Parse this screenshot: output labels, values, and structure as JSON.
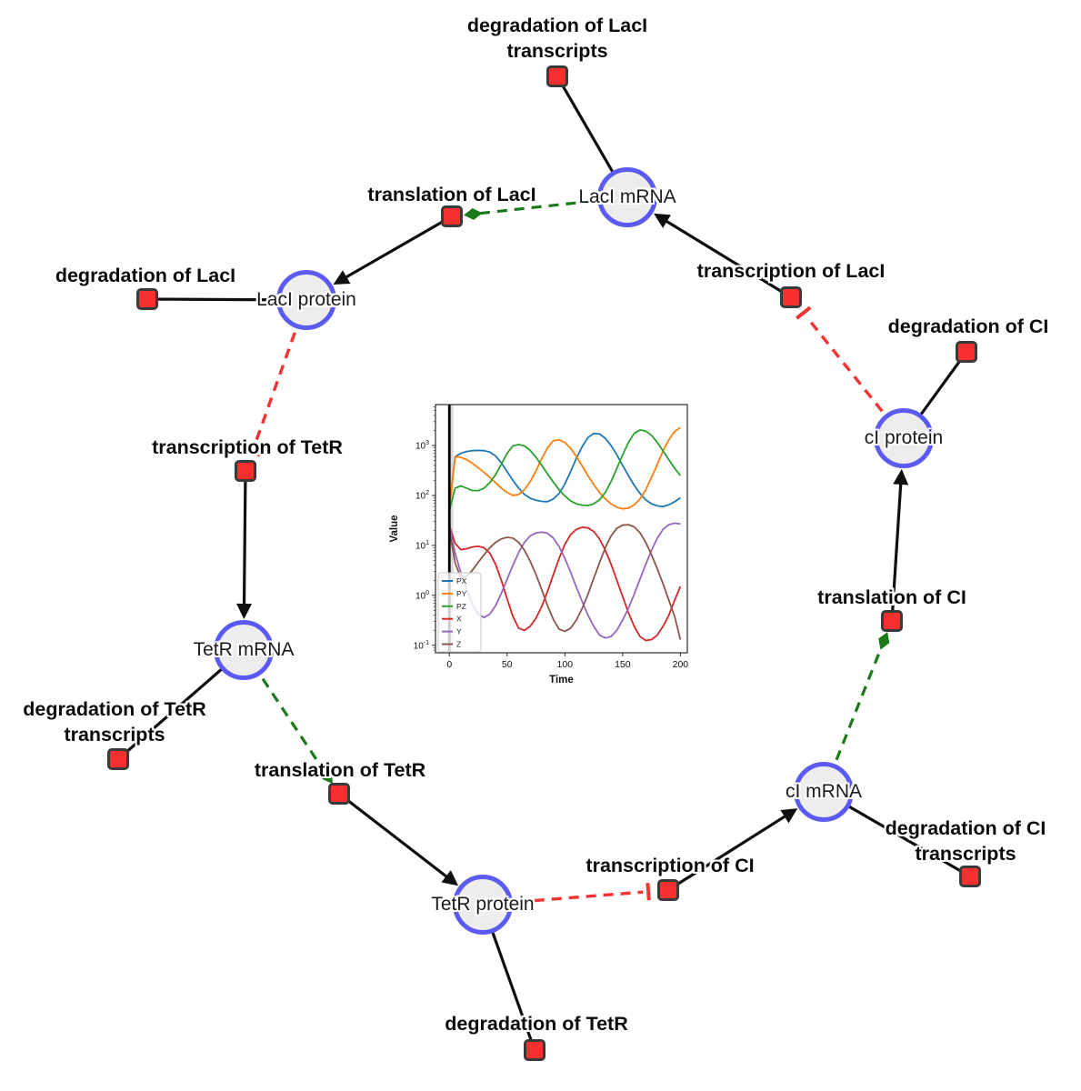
{
  "diagram": {
    "species": [
      {
        "id": "laci-mrna",
        "label": "LacI mRNA"
      },
      {
        "id": "laci-protein",
        "label": "LacI protein"
      },
      {
        "id": "tetr-mrna",
        "label": "TetR mRNA"
      },
      {
        "id": "tetr-protein",
        "label": "TetR protein"
      },
      {
        "id": "ci-mrna",
        "label": "cI mRNA"
      },
      {
        "id": "ci-protein",
        "label": "cI protein"
      }
    ],
    "reactions": [
      {
        "id": "degradation-laci-transcripts",
        "label_lines": [
          "degradation of LacI",
          "transcripts"
        ]
      },
      {
        "id": "translation-laci",
        "label_lines": [
          "translation of LacI"
        ]
      },
      {
        "id": "degradation-laci",
        "label_lines": [
          "degradation of LacI"
        ]
      },
      {
        "id": "transcription-laci",
        "label_lines": [
          "transcription of LacI"
        ]
      },
      {
        "id": "degradation-ci",
        "label_lines": [
          "degradation of CI"
        ]
      },
      {
        "id": "transcription-tetr",
        "label_lines": [
          "transcription of TetR"
        ]
      },
      {
        "id": "degradation-tetr-transcripts",
        "label_lines": [
          "degradation of TetR",
          "transcripts"
        ]
      },
      {
        "id": "translation-tetr",
        "label_lines": [
          "translation of TetR"
        ]
      },
      {
        "id": "degradation-tetr",
        "label_lines": [
          "degradation of TetR"
        ]
      },
      {
        "id": "transcription-ci",
        "label_lines": [
          "transcription of CI"
        ]
      },
      {
        "id": "degradation-ci-transcripts",
        "label_lines": [
          "degradation of CI",
          "transcripts"
        ]
      },
      {
        "id": "translation-ci",
        "label_lines": [
          "translation of CI"
        ]
      }
    ],
    "edges": [
      {
        "from": "laci-mrna",
        "to": "degradation-laci-transcripts",
        "type": "consumption"
      },
      {
        "from": "transcription-laci",
        "to": "laci-mrna",
        "type": "production"
      },
      {
        "from": "translation-laci",
        "to": "laci-protein",
        "type": "production"
      },
      {
        "from": "laci-protein",
        "to": "degradation-laci",
        "type": "consumption"
      },
      {
        "from": "transcription-tetr",
        "to": "tetr-mrna",
        "type": "production"
      },
      {
        "from": "tetr-mrna",
        "to": "degradation-tetr-transcripts",
        "type": "consumption"
      },
      {
        "from": "translation-tetr",
        "to": "tetr-protein",
        "type": "production"
      },
      {
        "from": "tetr-protein",
        "to": "degradation-tetr",
        "type": "consumption"
      },
      {
        "from": "transcription-ci",
        "to": "ci-mrna",
        "type": "production"
      },
      {
        "from": "ci-mrna",
        "to": "degradation-ci-transcripts",
        "type": "consumption"
      },
      {
        "from": "translation-ci",
        "to": "ci-protein",
        "type": "production"
      },
      {
        "from": "ci-protein",
        "to": "degradation-ci",
        "type": "consumption"
      },
      {
        "from": "laci-mrna",
        "to": "translation-laci",
        "type": "catalysis"
      },
      {
        "from": "tetr-mrna",
        "to": "translation-tetr",
        "type": "catalysis"
      },
      {
        "from": "ci-mrna",
        "to": "translation-ci",
        "type": "catalysis"
      },
      {
        "from": "laci-protein",
        "to": "transcription-tetr",
        "type": "inhibition"
      },
      {
        "from": "tetr-protein",
        "to": "transcription-ci",
        "type": "inhibition"
      },
      {
        "from": "ci-protein",
        "to": "transcription-laci",
        "type": "inhibition"
      }
    ],
    "colors": {
      "species_fill": "#ededed",
      "species_border": "#5b5bf3",
      "reaction_fill": "#f5302e",
      "reaction_border": "#3a3a3a",
      "edge_black": "#0f0f0f",
      "catalysis_green": "#1a7a1a",
      "inhibition_red": "#f53333"
    }
  },
  "chart_data": {
    "type": "line",
    "title": "",
    "xlabel": "Time",
    "ylabel": "Value",
    "y_scale": "log",
    "grid": false,
    "legend_position": "lower left",
    "x_ticks": [
      0,
      50,
      100,
      150,
      200
    ],
    "y_tick_exponents": [
      -1,
      0,
      1,
      2,
      3
    ],
    "xlim": [
      -12,
      206
    ],
    "ylim_log10": [
      -1.15,
      3.82
    ],
    "event_line_x": 0,
    "x": [
      0,
      5,
      10,
      15,
      20,
      25,
      30,
      35,
      40,
      45,
      50,
      55,
      60,
      65,
      70,
      75,
      80,
      85,
      90,
      95,
      100,
      105,
      110,
      115,
      120,
      125,
      130,
      135,
      140,
      145,
      150,
      155,
      160,
      165,
      170,
      175,
      180,
      185,
      190,
      195,
      200
    ],
    "series": [
      {
        "name": "PX",
        "color": "#1f77b4",
        "values": [
          60,
          600,
          700,
          760,
          790,
          800,
          790,
          740,
          620,
          450,
          300,
          200,
          140,
          105,
          88,
          80,
          76,
          75,
          85,
          110,
          170,
          300,
          560,
          950,
          1450,
          1750,
          1700,
          1400,
          1000,
          650,
          400,
          250,
          160,
          110,
          82,
          68,
          62,
          60,
          65,
          75,
          90
        ]
      },
      {
        "name": "PY",
        "color": "#ff7f0e",
        "values": [
          55,
          600,
          580,
          520,
          440,
          360,
          290,
          230,
          180,
          140,
          115,
          100,
          105,
          130,
          190,
          310,
          550,
          900,
          1250,
          1300,
          1150,
          880,
          600,
          390,
          250,
          165,
          115,
          85,
          68,
          58,
          54,
          56,
          65,
          85,
          130,
          230,
          420,
          780,
          1300,
          1900,
          2300
        ]
      },
      {
        "name": "PZ",
        "color": "#2ca02c",
        "values": [
          50,
          140,
          155,
          140,
          125,
          125,
          140,
          180,
          260,
          420,
          700,
          980,
          1050,
          980,
          800,
          580,
          400,
          270,
          185,
          130,
          98,
          78,
          68,
          64,
          63,
          68,
          82,
          115,
          190,
          350,
          650,
          1150,
          1750,
          2050,
          1950,
          1600,
          1150,
          780,
          520,
          350,
          250
        ]
      },
      {
        "name": "X",
        "color": "#d62728",
        "values": [
          25,
          11,
          8.2,
          8.6,
          9.3,
          9.6,
          9.0,
          7.0,
          4.2,
          2.0,
          0.85,
          0.38,
          0.22,
          0.2,
          0.24,
          0.35,
          0.6,
          1.2,
          2.6,
          5.5,
          10.5,
          16.5,
          21,
          23,
          22.5,
          19,
          13.5,
          8,
          4.2,
          2,
          0.95,
          0.45,
          0.24,
          0.15,
          0.125,
          0.13,
          0.16,
          0.24,
          0.4,
          0.8,
          1.5
        ]
      },
      {
        "name": "Y",
        "color": "#9467bd",
        "values": [
          25,
          7,
          2.8,
          1.3,
          0.65,
          0.42,
          0.36,
          0.42,
          0.62,
          1.1,
          2.1,
          4,
          7.2,
          11.5,
          15.5,
          17.8,
          18.5,
          17.5,
          14,
          9.5,
          5.5,
          2.9,
          1.45,
          0.75,
          0.4,
          0.24,
          0.16,
          0.14,
          0.15,
          0.2,
          0.32,
          0.55,
          1.05,
          2.1,
          4.2,
          8,
          14,
          21,
          26,
          28,
          27
        ]
      },
      {
        "name": "Z",
        "color": "#8c564b",
        "values": [
          20,
          4.5,
          2.2,
          2.4,
          3.2,
          4.6,
          6.5,
          9,
          11.5,
          13.5,
          14.5,
          14,
          11.5,
          8,
          4.8,
          2.6,
          1.3,
          0.62,
          0.33,
          0.21,
          0.19,
          0.22,
          0.32,
          0.55,
          1.05,
          2.2,
          4.5,
          9,
          15.5,
          22,
          25.5,
          26,
          23.5,
          18,
          11.5,
          6.5,
          3.4,
          1.7,
          0.8,
          0.38,
          0.13
        ]
      }
    ]
  }
}
